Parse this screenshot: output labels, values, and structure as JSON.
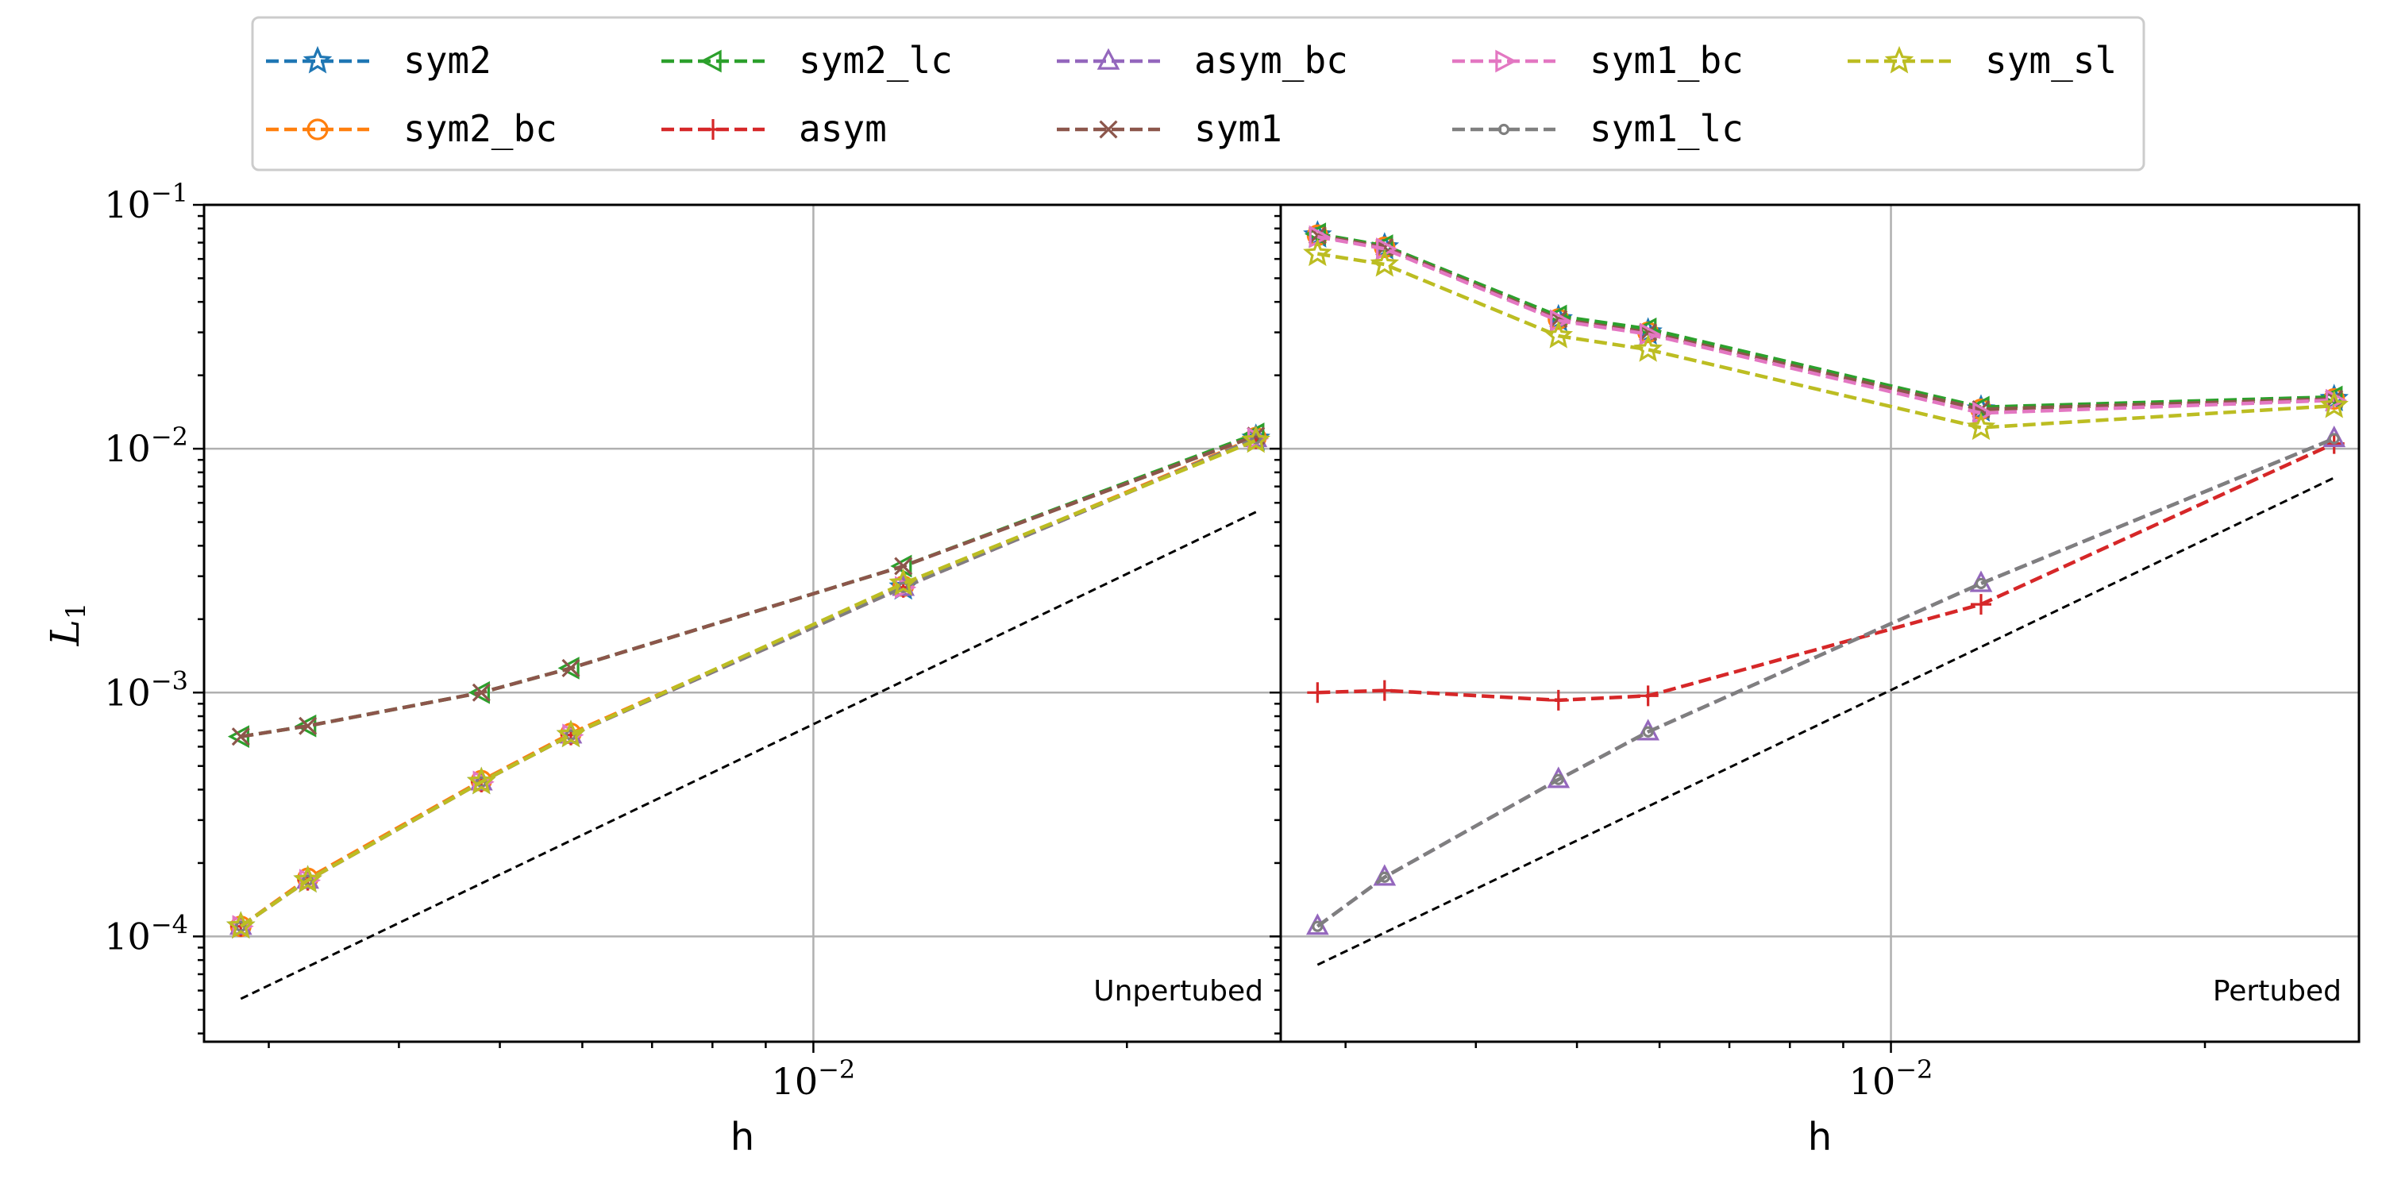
{
  "chart_data": [
    {
      "type": "line",
      "annotation": "Unpertubed",
      "xlabel": "h",
      "ylabel": "L",
      "ylabel_subscript": "1",
      "xscale": "log",
      "yscale": "log",
      "xlim": [
        0.0026,
        0.0281
      ],
      "ylim": [
        3.7e-05,
        0.1
      ],
      "x_ticks": [
        {
          "value": 0.01,
          "base": "10",
          "exp": "−2"
        }
      ],
      "y_ticks": [
        {
          "value": 0.1,
          "base": "10",
          "exp": "−1"
        },
        {
          "value": 0.01,
          "base": "10",
          "exp": "−2"
        },
        {
          "value": 0.001,
          "base": "10",
          "exp": "−3"
        },
        {
          "value": 0.0001,
          "base": "10",
          "exp": "−4"
        }
      ],
      "grid": true,
      "x": [
        0.00282,
        0.00327,
        0.0048,
        0.00585,
        0.0122,
        0.0266
      ],
      "series": [
        {
          "name": "sym2",
          "values": [
            0.00011,
            0.00017,
            0.00043,
            0.00067,
            0.0027,
            0.011
          ]
        },
        {
          "name": "sym2_bc",
          "values": [
            0.00011,
            0.000173,
            0.000435,
            0.00068,
            0.00273,
            0.0111
          ]
        },
        {
          "name": "sym2_lc",
          "values": [
            0.00066,
            0.00073,
            0.001,
            0.00126,
            0.0033,
            0.0115
          ]
        },
        {
          "name": "asym",
          "values": [
            0.00011,
            0.00017,
            0.00043,
            0.00067,
            0.0027,
            0.011
          ]
        },
        {
          "name": "asym_bc",
          "values": [
            0.00011,
            0.00017,
            0.00043,
            0.00067,
            0.0027,
            0.011
          ]
        },
        {
          "name": "sym1",
          "values": [
            0.00066,
            0.00073,
            0.001,
            0.00126,
            0.0033,
            0.0113
          ]
        },
        {
          "name": "sym1_bc",
          "values": [
            0.00011,
            0.00017,
            0.00043,
            0.00067,
            0.0027,
            0.011
          ]
        },
        {
          "name": "sym1_lc",
          "values": [
            0.00011,
            0.00017,
            0.00043,
            0.00067,
            0.0027,
            0.011
          ]
        },
        {
          "name": "sym_sl",
          "values": [
            0.00011,
            0.00017,
            0.00043,
            0.00067,
            0.0028,
            0.0108
          ]
        }
      ],
      "reference_line": {
        "x": [
          0.00282,
          0.0266
        ],
        "y": [
          5.55e-05,
          0.0055
        ]
      }
    },
    {
      "type": "line",
      "annotation": "Pertubed",
      "xlabel": "h",
      "xscale": "log",
      "yscale": "log",
      "xlim": [
        0.0026,
        0.0281
      ],
      "ylim": [
        3.7e-05,
        0.1
      ],
      "x_ticks": [
        {
          "value": 0.01,
          "base": "10",
          "exp": "−2"
        }
      ],
      "grid": true,
      "x": [
        0.00282,
        0.00327,
        0.0048,
        0.00585,
        0.0122,
        0.0266
      ],
      "series": [
        {
          "name": "sym2",
          "values": [
            0.075,
            0.067,
            0.034,
            0.03,
            0.0145,
            0.016
          ]
        },
        {
          "name": "sym2_bc",
          "values": [
            0.075,
            0.067,
            0.034,
            0.03,
            0.0145,
            0.016
          ]
        },
        {
          "name": "sym2_lc",
          "values": [
            0.076,
            0.068,
            0.035,
            0.031,
            0.0148,
            0.0163
          ]
        },
        {
          "name": "asym",
          "values": [
            0.001,
            0.00102,
            0.00093,
            0.00097,
            0.0023,
            0.0105
          ]
        },
        {
          "name": "asym_bc",
          "values": [
            0.00011,
            0.000175,
            0.00044,
            0.00069,
            0.0028,
            0.011
          ]
        },
        {
          "name": "sym1",
          "values": [
            0.075,
            0.067,
            0.034,
            0.03,
            0.0145,
            0.016
          ]
        },
        {
          "name": "sym1_bc",
          "values": [
            0.074,
            0.066,
            0.0335,
            0.0295,
            0.014,
            0.0158
          ]
        },
        {
          "name": "sym1_lc",
          "values": [
            0.00011,
            0.000175,
            0.00044,
            0.00069,
            0.0028,
            0.011
          ]
        },
        {
          "name": "sym_sl",
          "values": [
            0.063,
            0.057,
            0.029,
            0.0255,
            0.0122,
            0.015
          ]
        }
      ],
      "reference_line": {
        "x": [
          0.00282,
          0.0266
        ],
        "y": [
          7.65e-05,
          0.0076
        ]
      }
    }
  ],
  "legend": {
    "placement": "top-center",
    "entries": [
      {
        "label": "sym2",
        "color": "#1f77b4",
        "marker": "star"
      },
      {
        "label": "sym2_bc",
        "color": "#ff7f0e",
        "marker": "circle"
      },
      {
        "label": "sym2_lc",
        "color": "#2ca02c",
        "marker": "triangle-left"
      },
      {
        "label": "asym",
        "color": "#d62728",
        "marker": "plus"
      },
      {
        "label": "asym_bc",
        "color": "#9467bd",
        "marker": "triangle-up"
      },
      {
        "label": "sym1",
        "color": "#8c564b",
        "marker": "x"
      },
      {
        "label": "sym1_bc",
        "color": "#e377c2",
        "marker": "triangle-right"
      },
      {
        "label": "sym1_lc",
        "color": "#7f7f7f",
        "marker": "small-circle"
      },
      {
        "label": "sym_sl",
        "color": "#bcbd22",
        "marker": "star"
      }
    ]
  }
}
